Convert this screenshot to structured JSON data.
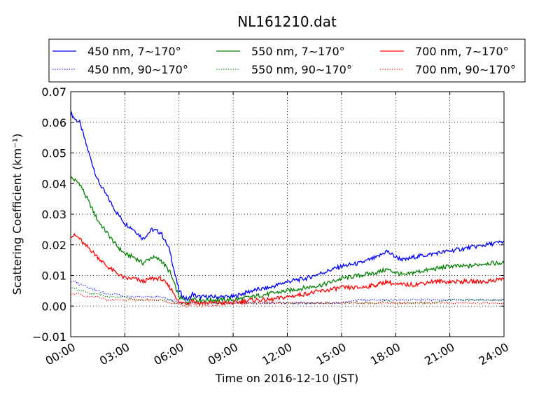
{
  "chart_data": {
    "type": "line",
    "title": "NL161210.dat",
    "xlabel": "Time on 2016-12-10 (JST)",
    "ylabel": "Scattering Coefficient (km⁻¹)",
    "xlim": [
      "00:00",
      "24:00"
    ],
    "ylim": [
      -0.01,
      0.07
    ],
    "x_tick_labels": [
      "00:00",
      "03:00",
      "06:00",
      "09:00",
      "12:00",
      "15:00",
      "18:00",
      "21:00",
      "24:00"
    ],
    "y_tick_labels": [
      "−0.01",
      "0.00",
      "0.01",
      "0.02",
      "0.03",
      "0.04",
      "0.05",
      "0.06",
      "0.07"
    ],
    "y_ticks": [
      -0.01,
      0,
      0.01,
      0.02,
      0.03,
      0.04,
      0.05,
      0.06,
      0.07
    ],
    "grid": true,
    "legend_position": "top-center",
    "x_hours": [
      0,
      0.25,
      0.5,
      0.75,
      1,
      1.5,
      2,
      2.5,
      3,
      3.5,
      4,
      4.5,
      5,
      5.5,
      5.75,
      6,
      6.25,
      6.5,
      6.75,
      7,
      8,
      9,
      10,
      11,
      12,
      13,
      14,
      15,
      16,
      17,
      17.5,
      18,
      18.5,
      19,
      20,
      21,
      22,
      23,
      24
    ],
    "series": [
      {
        "name": "450 nm, 7∼170°",
        "color": "#0000ff",
        "style": "solid",
        "values": [
          0.063,
          0.061,
          0.06,
          0.055,
          0.05,
          0.041,
          0.036,
          0.031,
          0.027,
          0.025,
          0.022,
          0.025,
          0.024,
          0.018,
          0.011,
          0.005,
          0.003,
          0.002,
          0.004,
          0.003,
          0.003,
          0.003,
          0.005,
          0.006,
          0.008,
          0.009,
          0.011,
          0.013,
          0.014,
          0.016,
          0.018,
          0.016,
          0.015,
          0.016,
          0.017,
          0.018,
          0.019,
          0.02,
          0.021
        ]
      },
      {
        "name": "550 nm, 7∼170°",
        "color": "#008000",
        "style": "solid",
        "values": [
          0.042,
          0.041,
          0.04,
          0.037,
          0.034,
          0.028,
          0.024,
          0.02,
          0.017,
          0.016,
          0.014,
          0.016,
          0.015,
          0.011,
          0.007,
          0.003,
          0.002,
          0.001,
          0.003,
          0.002,
          0.002,
          0.002,
          0.003,
          0.004,
          0.005,
          0.006,
          0.007,
          0.009,
          0.01,
          0.011,
          0.012,
          0.011,
          0.01,
          0.011,
          0.012,
          0.013,
          0.013,
          0.014,
          0.014
        ]
      },
      {
        "name": "700 nm, 7∼170°",
        "color": "#ff0000",
        "style": "solid",
        "values": [
          0.023,
          0.023,
          0.022,
          0.02,
          0.019,
          0.016,
          0.013,
          0.011,
          0.009,
          0.009,
          0.008,
          0.009,
          0.009,
          0.006,
          0.004,
          0.001,
          0.001,
          0.001,
          0.002,
          0.001,
          0.001,
          0.001,
          0.002,
          0.002,
          0.003,
          0.004,
          0.005,
          0.006,
          0.006,
          0.007,
          0.008,
          0.007,
          0.007,
          0.007,
          0.008,
          0.008,
          0.008,
          0.008,
          0.009
        ]
      },
      {
        "name": "450 nm, 90∼170°",
        "color": "#0000ff",
        "style": "dotted",
        "values": [
          0.008,
          0.008,
          0.007,
          0.007,
          0.006,
          0.005,
          0.004,
          0.004,
          0.003,
          0.003,
          0.003,
          0.003,
          0.003,
          0.002,
          0.002,
          0.001,
          0.001,
          0.001,
          0.001,
          0.001,
          0.001,
          0.001,
          0.001,
          0.001,
          0.001,
          0.001,
          0.001,
          0.001,
          0.002,
          0.002,
          0.002,
          0.002,
          0.002,
          0.002,
          0.002,
          0.002,
          0.002,
          0.002,
          0.002
        ]
      },
      {
        "name": "550 nm, 90∼170°",
        "color": "#008000",
        "style": "dotted",
        "values": [
          0.006,
          0.006,
          0.005,
          0.005,
          0.004,
          0.004,
          0.003,
          0.003,
          0.003,
          0.002,
          0.002,
          0.002,
          0.002,
          0.002,
          0.001,
          0.001,
          0.001,
          0.001,
          0.001,
          0.001,
          0.001,
          0.001,
          0.001,
          0.001,
          0.001,
          0.001,
          0.001,
          0.001,
          0.001,
          0.001,
          0.002,
          0.001,
          0.001,
          0.001,
          0.001,
          0.002,
          0.002,
          0.002,
          0.002
        ]
      },
      {
        "name": "700 nm, 90∼170°",
        "color": "#ff0000",
        "style": "dotted",
        "values": [
          0.004,
          0.004,
          0.004,
          0.003,
          0.003,
          0.003,
          0.002,
          0.002,
          0.002,
          0.002,
          0.002,
          0.002,
          0.002,
          0.001,
          0.001,
          0.001,
          0.0,
          0.0,
          0.001,
          0.0,
          0.0,
          0.001,
          0.001,
          0.001,
          0.001,
          0.001,
          0.001,
          0.001,
          0.001,
          0.001,
          0.001,
          0.001,
          0.001,
          0.001,
          0.001,
          0.001,
          0.001,
          0.001,
          0.001
        ]
      }
    ],
    "legend_order": [
      0,
      1,
      2,
      3,
      4,
      5
    ]
  }
}
